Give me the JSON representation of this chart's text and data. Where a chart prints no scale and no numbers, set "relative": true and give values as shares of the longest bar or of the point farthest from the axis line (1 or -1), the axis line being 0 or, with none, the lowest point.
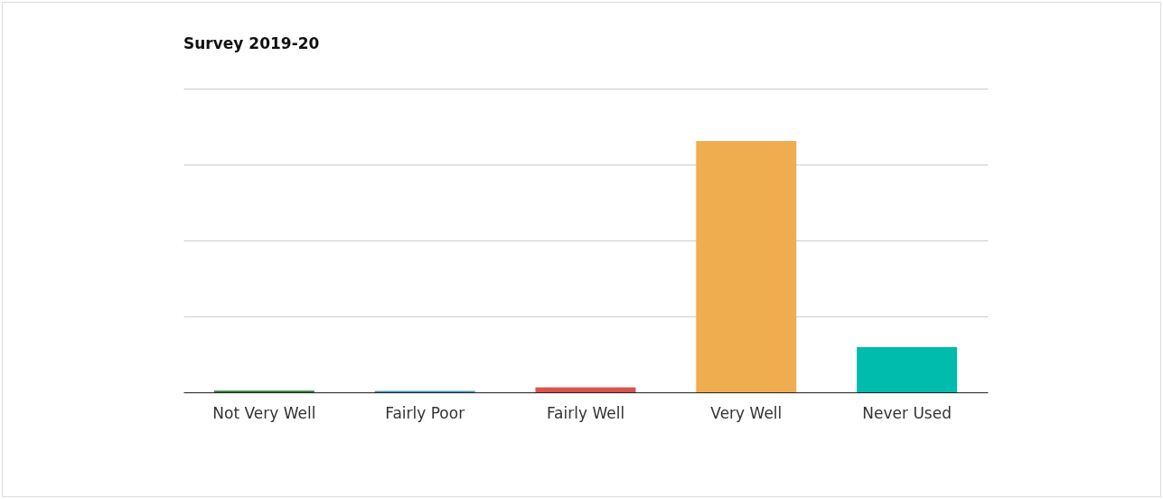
{
  "chart_data": {
    "type": "bar",
    "title": "Survey 2019-20",
    "relative": true,
    "grid": "y",
    "categories": [
      "Not Very Well",
      "Fairly Poor",
      "Fairly Well",
      "Very Well",
      "Never Used"
    ],
    "values": [
      0.007,
      0.005,
      0.02,
      1,
      0.18
    ],
    "colors": [
      "#3e8e41",
      "#3d8fc6",
      "#d9534f",
      "#efad4f",
      "#00bcad"
    ]
  }
}
